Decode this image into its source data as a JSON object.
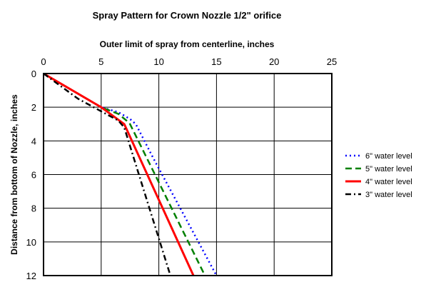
{
  "chart_data": {
    "type": "line",
    "title": "Spray Pattern for Crown Nozzle 1/2\" orifice",
    "xlabel": "Outer limit of spray from centerline, inches",
    "ylabel": "Distance from bottom of Nozzle, inches",
    "xlim": [
      0,
      25
    ],
    "ylim": [
      0,
      12
    ],
    "y_inverted": true,
    "x_axis_position": "top",
    "x_ticks": [
      0,
      5,
      10,
      15,
      20,
      25
    ],
    "y_ticks": [
      0,
      2,
      4,
      6,
      8,
      10,
      12
    ],
    "grid": true,
    "legend_position": "right",
    "series": [
      {
        "name": "6\" water level",
        "color": "#0000ff",
        "dash": "dotted",
        "x": [
          0,
          5,
          6.5,
          7.5,
          8,
          9.5,
          15
        ],
        "y": [
          0,
          2,
          2.3,
          2.7,
          3,
          5,
          12
        ]
      },
      {
        "name": "5\" water level",
        "color": "#008000",
        "dash": "dashed",
        "x": [
          0,
          5,
          6.5,
          7.2,
          7.5,
          14
        ],
        "y": [
          0,
          2,
          2.4,
          2.8,
          3,
          12
        ]
      },
      {
        "name": "4\" water level",
        "color": "#ff0000",
        "dash": "solid",
        "x": [
          0,
          5,
          7,
          13
        ],
        "y": [
          0,
          2,
          3,
          12
        ]
      },
      {
        "name": "3\" water level",
        "color": "#000000",
        "dash": "dashdot",
        "x": [
          0,
          3,
          6.5,
          7,
          11
        ],
        "y": [
          0,
          1.5,
          2.8,
          3.2,
          12
        ]
      }
    ]
  }
}
